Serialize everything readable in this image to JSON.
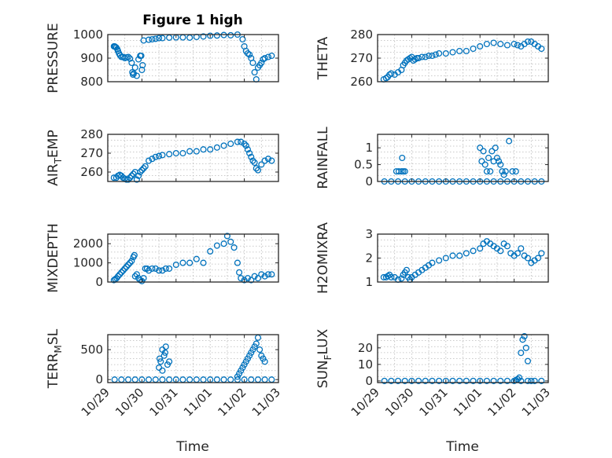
{
  "figure": {
    "title": "Figure 1 high",
    "bottom_xlabel": "Time"
  },
  "chart_data": [
    {
      "type": "scatter",
      "title": "Figure 1 high",
      "ylabel": "PRESSURE",
      "ylim": [
        800,
        1000
      ],
      "yticks": [
        {
          "v": 800,
          "t": "800"
        },
        {
          "v": 900,
          "t": "900"
        },
        {
          "v": 1000,
          "t": "1000"
        }
      ],
      "xticks": [],
      "xlabel": "",
      "grid": true,
      "marker_color": "#0072bd",
      "x": [
        0.18,
        0.2,
        0.22,
        0.25,
        0.28,
        0.3,
        0.33,
        0.36,
        0.4,
        0.45,
        0.5,
        0.55,
        0.6,
        0.65,
        0.7,
        0.72,
        0.74,
        0.76,
        0.8,
        0.85,
        0.9,
        0.95,
        0.98,
        1.0,
        1.02,
        1.05,
        1.2,
        1.3,
        1.4,
        1.5,
        1.6,
        1.8,
        2.0,
        2.2,
        2.4,
        2.6,
        2.8,
        3.0,
        3.2,
        3.4,
        3.6,
        3.8,
        3.95,
        4.0,
        4.05,
        4.1,
        4.15,
        4.2,
        4.25,
        4.3,
        4.35,
        4.4,
        4.45,
        4.5,
        4.55,
        4.6,
        4.7,
        4.8
      ],
      "y": [
        950,
        950,
        948,
        945,
        938,
        930,
        920,
        912,
        905,
        905,
        900,
        903,
        905,
        898,
        880,
        840,
        830,
        835,
        860,
        825,
        895,
        910,
        910,
        850,
        870,
        975,
        978,
        980,
        982,
        985,
        985,
        987,
        988,
        988,
        987,
        990,
        992,
        995,
        996,
        998,
        997,
        1000,
        980,
        950,
        930,
        920,
        915,
        900,
        880,
        840,
        810,
        860,
        870,
        880,
        895,
        900,
        905,
        910
      ]
    },
    {
      "type": "scatter",
      "title": "",
      "ylabel": "THETA",
      "ylim": [
        260,
        280
      ],
      "yticks": [
        {
          "v": 260,
          "t": "260"
        },
        {
          "v": 270,
          "t": "270"
        },
        {
          "v": 280,
          "t": "280"
        }
      ],
      "xticks": [],
      "xlabel": "",
      "grid": true,
      "marker_color": "#0072bd",
      "x": [
        0.18,
        0.25,
        0.3,
        0.35,
        0.4,
        0.5,
        0.6,
        0.7,
        0.75,
        0.8,
        0.85,
        0.9,
        0.95,
        1.0,
        1.05,
        1.1,
        1.15,
        1.2,
        1.3,
        1.4,
        1.5,
        1.6,
        1.7,
        1.8,
        2.0,
        2.2,
        2.4,
        2.6,
        2.8,
        3.0,
        3.2,
        3.4,
        3.6,
        3.8,
        4.0,
        4.1,
        4.2,
        4.3,
        4.4,
        4.5,
        4.6,
        4.7,
        4.8
      ],
      "y": [
        261,
        261.5,
        262,
        263,
        263.5,
        263,
        264,
        265,
        267,
        268,
        269,
        269.5,
        270,
        270.5,
        269,
        269.5,
        270,
        270,
        270.5,
        270.5,
        271,
        271,
        271.5,
        272,
        272,
        272.5,
        273,
        273,
        274,
        275,
        276,
        276.5,
        276,
        275.5,
        276,
        275.5,
        275,
        276,
        277,
        277,
        276,
        275,
        274
      ]
    },
    {
      "type": "scatter",
      "title": "",
      "ylabel": "AIR_TEMP",
      "ylim": [
        255,
        280
      ],
      "yticks": [
        {
          "v": 260,
          "t": "260"
        },
        {
          "v": 270,
          "t": "270"
        },
        {
          "v": 280,
          "t": "280"
        }
      ],
      "xticks": [],
      "xlabel": "",
      "grid": true,
      "marker_color": "#0072bd",
      "x": [
        0.18,
        0.25,
        0.3,
        0.35,
        0.4,
        0.45,
        0.5,
        0.55,
        0.6,
        0.65,
        0.7,
        0.75,
        0.8,
        0.85,
        0.9,
        0.95,
        1.0,
        1.05,
        1.1,
        1.2,
        1.3,
        1.4,
        1.5,
        1.6,
        1.8,
        2.0,
        2.2,
        2.4,
        2.6,
        2.8,
        3.0,
        3.2,
        3.4,
        3.6,
        3.8,
        3.9,
        4.0,
        4.05,
        4.1,
        4.15,
        4.2,
        4.25,
        4.3,
        4.35,
        4.4,
        4.5,
        4.6,
        4.7,
        4.8
      ],
      "y": [
        257,
        257,
        258,
        258.5,
        258,
        257,
        256.5,
        256,
        256,
        257,
        258,
        259,
        260,
        256,
        258,
        260,
        261,
        262,
        263,
        266,
        267,
        268,
        268.5,
        269,
        269.5,
        270,
        270,
        271,
        271,
        272,
        272,
        273,
        274,
        275,
        276,
        276,
        275,
        274,
        272,
        270,
        268,
        266,
        265,
        262,
        261,
        264,
        266,
        267,
        266
      ]
    },
    {
      "type": "scatter",
      "title": "",
      "ylabel": "RAINFALL",
      "ylim": [
        0,
        1.4
      ],
      "yticks": [
        {
          "v": 0,
          "t": "0"
        },
        {
          "v": 0.5,
          "t": "0.5"
        },
        {
          "v": 1,
          "t": "1"
        }
      ],
      "xticks": [],
      "xlabel": "",
      "grid": true,
      "marker_color": "#0072bd",
      "x": [
        0.2,
        0.4,
        0.6,
        0.8,
        1.0,
        1.2,
        1.4,
        1.6,
        1.8,
        2.0,
        2.2,
        2.4,
        2.6,
        2.8,
        3.0,
        3.2,
        3.4,
        3.6,
        3.8,
        4.0,
        4.2,
        4.4,
        4.6,
        4.8,
        0.55,
        0.62,
        0.7,
        0.75,
        0.8,
        0.72,
        3.0,
        3.05,
        3.1,
        3.15,
        3.2,
        3.25,
        3.3,
        3.35,
        3.4,
        3.45,
        3.5,
        3.55,
        3.6,
        3.65,
        3.7,
        3.75,
        3.85,
        3.95,
        4.05
      ],
      "y": [
        0,
        0,
        0,
        0,
        0,
        0,
        0,
        0,
        0,
        0,
        0,
        0,
        0,
        0,
        0,
        0,
        0,
        0,
        0,
        0,
        0,
        0,
        0,
        0,
        0.3,
        0.3,
        0.3,
        0.3,
        0.3,
        0.7,
        1.0,
        0.6,
        0.9,
        0.5,
        0.3,
        0.7,
        0.3,
        0.9,
        0.6,
        1.0,
        0.7,
        0.6,
        0.5,
        0.3,
        0.2,
        0.3,
        1.2,
        0.3,
        0.3
      ]
    },
    {
      "type": "scatter",
      "title": "",
      "ylabel": "MIXDEPTH",
      "ylim": [
        0,
        2500
      ],
      "yticks": [
        {
          "v": 0,
          "t": "0"
        },
        {
          "v": 1000,
          "t": "1000"
        },
        {
          "v": 2000,
          "t": "2000"
        }
      ],
      "xticks": [],
      "xlabel": "",
      "grid": true,
      "marker_color": "#0072bd",
      "x": [
        0.18,
        0.22,
        0.26,
        0.3,
        0.35,
        0.4,
        0.45,
        0.5,
        0.55,
        0.6,
        0.65,
        0.7,
        0.75,
        0.78,
        0.8,
        0.85,
        0.9,
        0.95,
        1.0,
        1.05,
        1.1,
        1.15,
        1.2,
        1.3,
        1.4,
        1.5,
        1.6,
        1.7,
        1.8,
        2.0,
        2.2,
        2.4,
        2.6,
        2.8,
        3.0,
        3.2,
        3.4,
        3.5,
        3.6,
        3.7,
        3.8,
        3.85,
        3.9,
        4.0,
        4.1,
        4.2,
        4.3,
        4.4,
        4.5,
        4.6,
        4.7,
        4.8
      ],
      "y": [
        100,
        150,
        200,
        300,
        400,
        500,
        600,
        700,
        800,
        900,
        1000,
        1100,
        1300,
        1400,
        300,
        400,
        200,
        100,
        50,
        200,
        700,
        700,
        600,
        700,
        700,
        600,
        600,
        700,
        700,
        900,
        1000,
        1000,
        1200,
        1000,
        1600,
        1900,
        2000,
        2400,
        2100,
        1800,
        1000,
        500,
        200,
        100,
        200,
        100,
        300,
        200,
        400,
        300,
        400,
        400
      ]
    },
    {
      "type": "scatter",
      "title": "",
      "ylabel": "H2OMIXRA",
      "ylim": [
        1,
        3
      ],
      "yticks": [
        {
          "v": 1,
          "t": "1"
        },
        {
          "v": 2,
          "t": "2"
        },
        {
          "v": 3,
          "t": "3"
        }
      ],
      "xticks": [],
      "xlabel": "",
      "grid": true,
      "marker_color": "#0072bd",
      "x": [
        0.18,
        0.25,
        0.3,
        0.35,
        0.4,
        0.5,
        0.6,
        0.7,
        0.75,
        0.8,
        0.85,
        0.9,
        0.95,
        1.0,
        1.1,
        1.2,
        1.3,
        1.4,
        1.5,
        1.6,
        1.8,
        2.0,
        2.2,
        2.4,
        2.6,
        2.8,
        3.0,
        3.1,
        3.2,
        3.3,
        3.4,
        3.5,
        3.6,
        3.7,
        3.8,
        3.9,
        4.0,
        4.1,
        4.2,
        4.3,
        4.4,
        4.5,
        4.6,
        4.7,
        4.8
      ],
      "y": [
        1.2,
        1.2,
        1.25,
        1.3,
        1.2,
        1.2,
        1.1,
        1.15,
        1.3,
        1.4,
        1.5,
        1.2,
        1.1,
        1.2,
        1.3,
        1.4,
        1.5,
        1.6,
        1.7,
        1.8,
        1.9,
        2.0,
        2.1,
        2.1,
        2.2,
        2.3,
        2.4,
        2.6,
        2.7,
        2.6,
        2.5,
        2.4,
        2.3,
        2.6,
        2.5,
        2.2,
        2.1,
        2.2,
        2.4,
        2.1,
        2.0,
        1.8,
        1.9,
        2.0,
        2.2
      ]
    },
    {
      "type": "scatter",
      "title": "",
      "ylabel": "TERR_MSL",
      "ylim": [
        -50,
        750
      ],
      "yticks": [
        {
          "v": 0,
          "t": "0"
        },
        {
          "v": 500,
          "t": "500"
        }
      ],
      "xticks": [
        {
          "v": 0,
          "t": "10/29"
        },
        {
          "v": 1,
          "t": "10/30"
        },
        {
          "v": 2,
          "t": "10/31"
        },
        {
          "v": 3,
          "t": "11/01"
        },
        {
          "v": 4,
          "t": "11/02"
        },
        {
          "v": 5,
          "t": "11/03"
        }
      ],
      "xlabel": "Time",
      "grid": true,
      "marker_color": "#0072bd",
      "x": [
        0.2,
        0.4,
        0.6,
        0.8,
        1.0,
        1.2,
        1.4,
        1.6,
        1.8,
        2.0,
        2.2,
        2.4,
        2.6,
        2.8,
        3.0,
        3.2,
        3.4,
        3.6,
        3.8,
        4.0,
        4.2,
        4.4,
        4.6,
        4.8,
        1.5,
        1.55,
        1.6,
        1.65,
        1.7,
        1.75,
        1.8,
        1.52,
        1.6,
        1.68,
        3.8,
        3.85,
        3.9,
        3.95,
        4.0,
        4.05,
        4.1,
        4.15,
        4.2,
        4.25,
        4.3,
        4.35,
        4.4,
        4.45,
        4.5,
        4.55,
        4.6
      ],
      "y": [
        0,
        0,
        0,
        0,
        0,
        0,
        0,
        0,
        0,
        0,
        0,
        0,
        0,
        0,
        0,
        0,
        0,
        0,
        0,
        0,
        0,
        0,
        0,
        0,
        200,
        300,
        500,
        400,
        550,
        250,
        300,
        350,
        150,
        450,
        50,
        100,
        150,
        200,
        250,
        300,
        350,
        400,
        450,
        500,
        550,
        600,
        700,
        500,
        400,
        350,
        300
      ]
    },
    {
      "type": "scatter",
      "title": "",
      "ylabel": "SUN_FLUX",
      "ylim": [
        -1,
        28
      ],
      "yticks": [
        {
          "v": 0,
          "t": "0"
        },
        {
          "v": 10,
          "t": "10"
        },
        {
          "v": 20,
          "t": "20"
        }
      ],
      "xticks": [
        {
          "v": 0,
          "t": "10/29"
        },
        {
          "v": 1,
          "t": "10/30"
        },
        {
          "v": 2,
          "t": "10/31"
        },
        {
          "v": 3,
          "t": "11/01"
        },
        {
          "v": 4,
          "t": "11/02"
        },
        {
          "v": 5,
          "t": "11/03"
        }
      ],
      "xlabel": "Time",
      "grid": true,
      "marker_color": "#0072bd",
      "x": [
        0.2,
        0.4,
        0.6,
        0.8,
        1.0,
        1.2,
        1.4,
        1.6,
        1.8,
        2.0,
        2.2,
        2.4,
        2.6,
        2.8,
        3.0,
        3.2,
        3.4,
        3.6,
        3.8,
        4.0,
        4.2,
        4.4,
        4.6,
        4.8,
        4.1,
        4.15,
        4.2,
        4.25,
        4.3,
        4.35,
        4.05,
        4.4,
        4.5
      ],
      "y": [
        0,
        0,
        0,
        0,
        0,
        0,
        0,
        0,
        0,
        0,
        0,
        0,
        0,
        0,
        0,
        0,
        0,
        0,
        0,
        0,
        0,
        0,
        0,
        0,
        1,
        2,
        17,
        25,
        27,
        20,
        0.5,
        12,
        0
      ]
    }
  ]
}
